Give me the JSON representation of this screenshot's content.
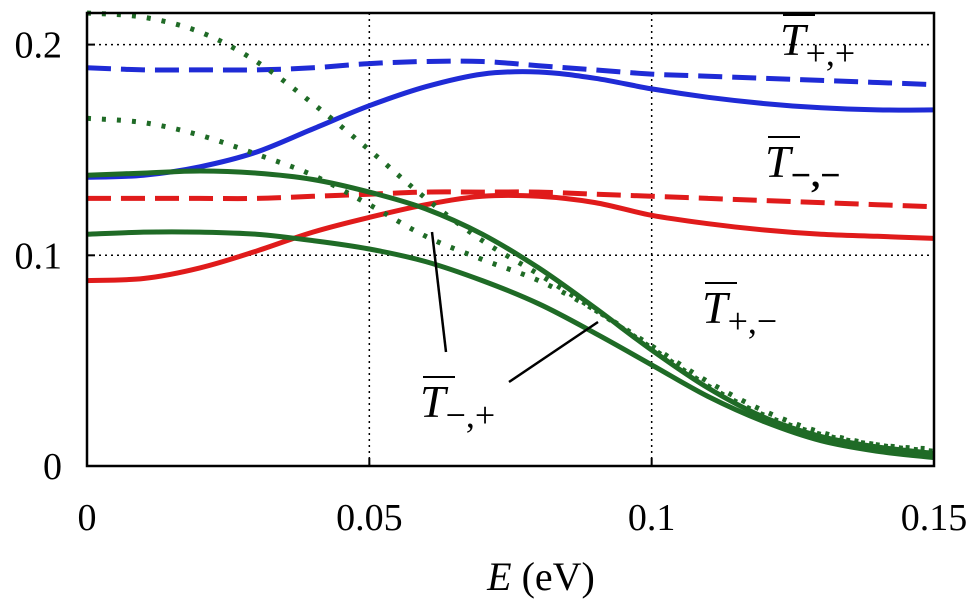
{
  "chart_data": {
    "type": "line",
    "xlabel": {
      "var": "E",
      "unit": "(eV)"
    },
    "ylabel": "",
    "xlim": [
      0,
      0.15
    ],
    "ylim": [
      0,
      0.2
    ],
    "x_ticks": [
      "0",
      "0.05",
      "0.1",
      "0.15"
    ],
    "y_ticks": [
      "0",
      "0.1",
      "0.2"
    ],
    "x_tick_values": [
      0,
      0.05,
      0.1,
      0.15
    ],
    "y_tick_values": [
      0,
      0.1,
      0.2
    ],
    "grid": true,
    "colors": {
      "blue": "#1f2bd6",
      "red": "#e01b1b",
      "green": "#1f6b26"
    },
    "series": [
      {
        "color": "blue",
        "style": "dashed",
        "x": [
          0,
          0.01,
          0.02,
          0.03,
          0.04,
          0.05,
          0.06,
          0.07,
          0.08,
          0.09,
          0.1,
          0.11,
          0.12,
          0.13,
          0.14,
          0.15
        ],
        "y": [
          0.189,
          0.188,
          0.188,
          0.188,
          0.189,
          0.191,
          0.192,
          0.192,
          0.19,
          0.188,
          0.186,
          0.185,
          0.184,
          0.183,
          0.182,
          0.181
        ]
      },
      {
        "color": "blue",
        "style": "solid",
        "x": [
          0,
          0.01,
          0.02,
          0.03,
          0.04,
          0.05,
          0.06,
          0.07,
          0.08,
          0.09,
          0.1,
          0.11,
          0.12,
          0.13,
          0.14,
          0.15
        ],
        "y": [
          0.137,
          0.138,
          0.142,
          0.149,
          0.16,
          0.171,
          0.18,
          0.186,
          0.187,
          0.184,
          0.179,
          0.175,
          0.172,
          0.17,
          0.169,
          0.169
        ]
      },
      {
        "color": "red",
        "style": "dashed",
        "x": [
          0,
          0.01,
          0.02,
          0.03,
          0.04,
          0.05,
          0.06,
          0.07,
          0.08,
          0.09,
          0.1,
          0.11,
          0.12,
          0.13,
          0.14,
          0.15
        ],
        "y": [
          0.127,
          0.127,
          0.127,
          0.127,
          0.128,
          0.129,
          0.13,
          0.13,
          0.13,
          0.129,
          0.128,
          0.127,
          0.126,
          0.125,
          0.124,
          0.123
        ]
      },
      {
        "color": "red",
        "style": "solid",
        "x": [
          0,
          0.01,
          0.02,
          0.03,
          0.04,
          0.05,
          0.06,
          0.07,
          0.08,
          0.09,
          0.1,
          0.11,
          0.12,
          0.13,
          0.14,
          0.15
        ],
        "y": [
          0.088,
          0.089,
          0.094,
          0.102,
          0.111,
          0.118,
          0.124,
          0.128,
          0.128,
          0.125,
          0.119,
          0.115,
          0.112,
          0.11,
          0.109,
          0.108
        ]
      },
      {
        "color": "green",
        "style": "dotted",
        "x": [
          0,
          0.01,
          0.02,
          0.03,
          0.04,
          0.05,
          0.06,
          0.07,
          0.08,
          0.09,
          0.1,
          0.11,
          0.12,
          0.13,
          0.14,
          0.15
        ],
        "y": [
          0.215,
          0.213,
          0.206,
          0.192,
          0.172,
          0.15,
          0.127,
          0.107,
          0.091,
          0.074,
          0.056,
          0.038,
          0.024,
          0.015,
          0.01,
          0.008
        ]
      },
      {
        "color": "green",
        "style": "dotted",
        "x": [
          0,
          0.01,
          0.02,
          0.03,
          0.04,
          0.05,
          0.06,
          0.07,
          0.08,
          0.09,
          0.1,
          0.11,
          0.12,
          0.13,
          0.14,
          0.15
        ],
        "y": [
          0.165,
          0.163,
          0.157,
          0.148,
          0.138,
          0.124,
          0.109,
          0.098,
          0.088,
          0.074,
          0.057,
          0.04,
          0.026,
          0.016,
          0.01,
          0.007
        ]
      },
      {
        "color": "green",
        "style": "solid",
        "x": [
          0,
          0.01,
          0.02,
          0.03,
          0.04,
          0.05,
          0.06,
          0.07,
          0.08,
          0.09,
          0.1,
          0.11,
          0.12,
          0.13,
          0.14,
          0.15
        ],
        "y": [
          0.138,
          0.139,
          0.14,
          0.139,
          0.136,
          0.13,
          0.122,
          0.11,
          0.094,
          0.075,
          0.055,
          0.037,
          0.023,
          0.014,
          0.009,
          0.006
        ]
      },
      {
        "color": "green",
        "style": "solid",
        "x": [
          0,
          0.01,
          0.02,
          0.03,
          0.04,
          0.05,
          0.06,
          0.07,
          0.08,
          0.09,
          0.1,
          0.11,
          0.12,
          0.13,
          0.14,
          0.15
        ],
        "y": [
          0.11,
          0.111,
          0.111,
          0.11,
          0.107,
          0.103,
          0.097,
          0.088,
          0.077,
          0.063,
          0.048,
          0.033,
          0.021,
          0.012,
          0.007,
          0.004
        ]
      }
    ],
    "annotations": [
      {
        "base": "T",
        "sub": "+,+"
      },
      {
        "base": "T",
        "sub": "−,−"
      },
      {
        "base": "T",
        "sub": "+,−"
      },
      {
        "base": "T",
        "sub": "−,+"
      }
    ]
  }
}
